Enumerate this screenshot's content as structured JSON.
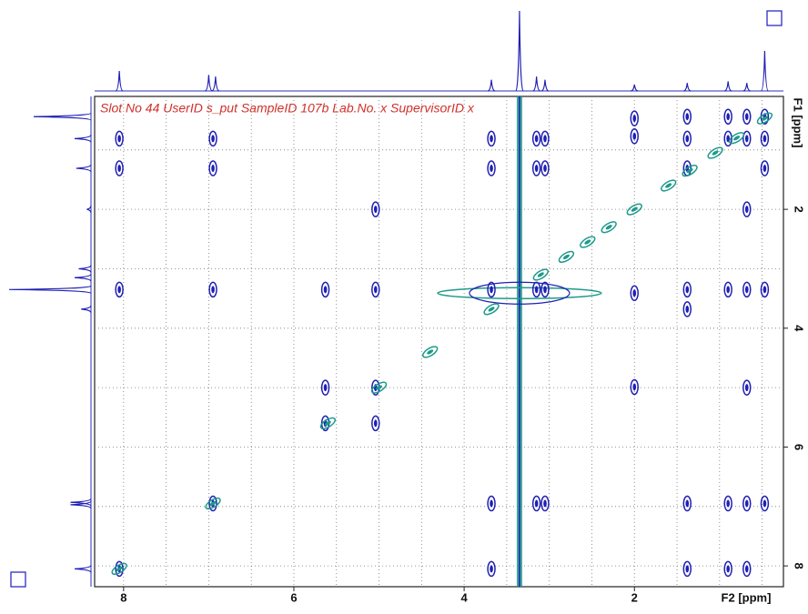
{
  "chart_data": {
    "type": "contour",
    "annotation": "Slot No 44 UserID s_put SampleID 107b Lab.No. x SupervisorID x",
    "x_label": "F2 [ppm]",
    "y_label": "F1 [ppm]",
    "xlim": [
      8.34,
      0.25
    ],
    "ylim": [
      0.1,
      8.35
    ],
    "xticks": [
      8,
      6,
      4,
      2
    ],
    "yticks": [
      2,
      4,
      6,
      8
    ],
    "xgrid": [
      8,
      7.5,
      7,
      6.5,
      6,
      5.5,
      5,
      4.5,
      4,
      3.5,
      3,
      2.5,
      2,
      1.5,
      1,
      0.5
    ],
    "ygrid": [
      1,
      2,
      3,
      4,
      5,
      6,
      7,
      8
    ],
    "series": [
      {
        "color": "#1f1fb4",
        "x": [
          8.05,
          8.05,
          8.05,
          8.05,
          6.95,
          6.95,
          6.95,
          6.95,
          5.63,
          5.63,
          5.63,
          5.04,
          5.04,
          5.04,
          5.04,
          3.68,
          3.68,
          3.68,
          3.68,
          3.68,
          3.15,
          3.15,
          3.15,
          3.15,
          3.05,
          3.05,
          3.05,
          3.05,
          2.0,
          2.0,
          2.0,
          2.0,
          1.38,
          1.38,
          1.38,
          1.38,
          1.38,
          1.38,
          1.38,
          0.9,
          0.9,
          0.9,
          0.9,
          0.9,
          0.68,
          0.68,
          0.68,
          0.68,
          0.68,
          0.68,
          0.68,
          0.47,
          0.47,
          0.47,
          0.47,
          0.47
        ],
        "y": [
          0.81,
          1.31,
          3.35,
          8.05,
          0.81,
          1.31,
          3.35,
          6.95,
          3.35,
          5.0,
          5.6,
          2.0,
          3.35,
          5.0,
          5.6,
          0.81,
          1.31,
          3.35,
          6.95,
          8.05,
          0.81,
          1.31,
          3.35,
          6.95,
          0.81,
          1.31,
          3.35,
          6.95,
          0.47,
          0.77,
          3.41,
          4.99,
          0.44,
          0.81,
          1.31,
          3.35,
          3.68,
          6.95,
          8.05,
          0.44,
          0.81,
          3.35,
          6.95,
          8.05,
          0.44,
          0.81,
          2.0,
          3.35,
          5.0,
          6.95,
          8.05,
          0.44,
          0.81,
          1.31,
          3.35,
          6.95
        ]
      },
      {
        "color": "#1e9a8a",
        "x": [
          8.05,
          6.95,
          5.6,
          5.0,
          4.4,
          3.68,
          3.1,
          2.8,
          2.55,
          2.3,
          2.0,
          1.6,
          1.35,
          1.05,
          0.8,
          0.47
        ],
        "y": [
          8.05,
          6.95,
          5.6,
          5.0,
          4.4,
          3.68,
          3.1,
          2.8,
          2.55,
          2.3,
          2.0,
          1.6,
          1.35,
          1.05,
          0.8,
          0.47
        ]
      }
    ],
    "ridge": {
      "x": 3.35,
      "y": 3.41
    },
    "top_projection": {
      "x": [
        8.05,
        7.0,
        6.92,
        3.68,
        3.35,
        3.15,
        3.05,
        2.0,
        1.38,
        0.9,
        0.68,
        0.47
      ],
      "values": [
        25,
        20,
        18,
        14,
        100,
        18,
        14,
        8,
        10,
        12,
        10,
        50
      ]
    },
    "left_projection": {
      "y": [
        0.44,
        0.81,
        1.31,
        2.0,
        3.0,
        3.15,
        3.35,
        3.68,
        6.93,
        6.97,
        8.05
      ],
      "values": [
        70,
        20,
        18,
        5,
        15,
        20,
        100,
        12,
        25,
        25,
        20
      ]
    }
  }
}
